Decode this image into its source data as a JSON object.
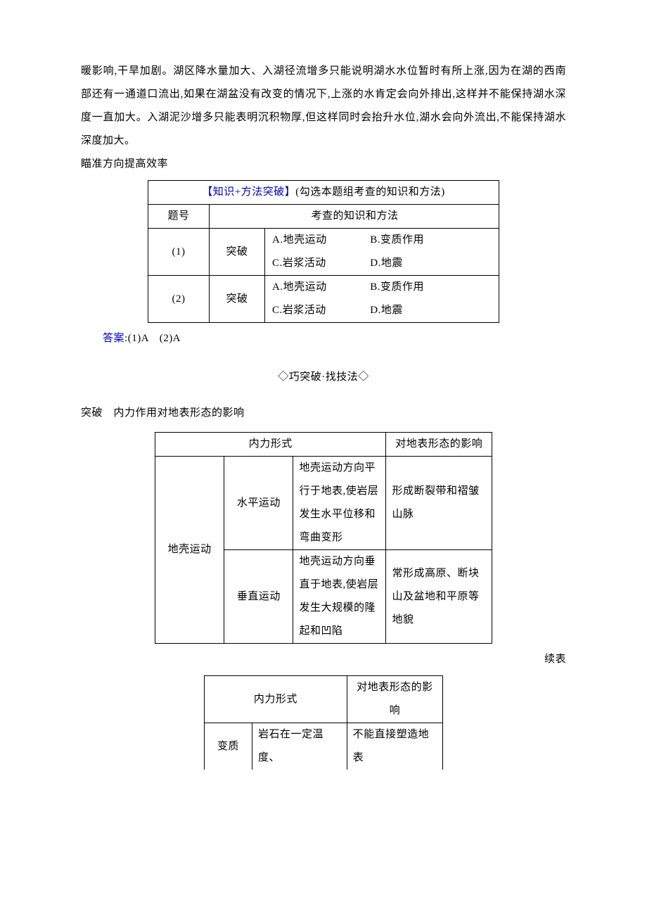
{
  "intro": {
    "p1": "暖影响,干旱加剧。湖区降水量加大、入湖径流增多只能说明湖水水位暂时有所上涨,因为在湖的西南部还有一通道口流出,如果在湖盆没有改变的情况下,上涨的水肯定会向外排出,这样并不能保持湖水深度一直加大。入湖泥沙增多只能表明沉积物厚,但这样同时会抬升水位,湖水会向外流出,不能保持湖水深度加大。",
    "p2": "瞄准方向提高效率"
  },
  "table1": {
    "header_text": "【知识+方法突破】(勾选本题组考查的知识和方法)",
    "header_prefix": "【知识+方法突破】",
    "header_suffix": "(勾选本题组考查的知识和方法)",
    "col_num": "题号",
    "col_content": "考查的知识和方法",
    "breakthrough": "突破",
    "rows": [
      {
        "num": "(1)",
        "a": "A.地壳运动",
        "b": "B.变质作用",
        "c": "C.岩浆活动",
        "d": "D.地震"
      },
      {
        "num": "(2)",
        "a": "A.地壳运动",
        "b": "B.变质作用",
        "c": "C.岩浆活动",
        "d": "D.地震"
      }
    ]
  },
  "answer": {
    "label": "答案",
    "text": ":(1)A　(2)A",
    "indent": "　　"
  },
  "section2": {
    "heading": "◇巧突破·找技法◇",
    "subheading": "突破　内力作用对地表形态的影响"
  },
  "table2": {
    "h_form": "内力形式",
    "h_effect": "对地表形态的影响",
    "r1c1": "地壳运动",
    "r1c2": "水平运动",
    "r1c3": "地壳运动方向平行于地表,使岩层发生水平位移和弯曲变形",
    "r1c4": "形成断裂带和褶皱山脉",
    "r2c2": "垂直运动",
    "r2c3": "地壳运动方向垂直于地表,使岩层发生大规模的隆起和凹陷",
    "r2c4": "常形成高原、断块山及盆地和平原等地貌"
  },
  "continue_label": "续表",
  "table3": {
    "h_form": "内力形式",
    "h_effect": "对地表形态的影响",
    "r1c1": "变质",
    "r1c2": "岩石在一定温度、",
    "r1c3": "不能直接塑造地表"
  }
}
